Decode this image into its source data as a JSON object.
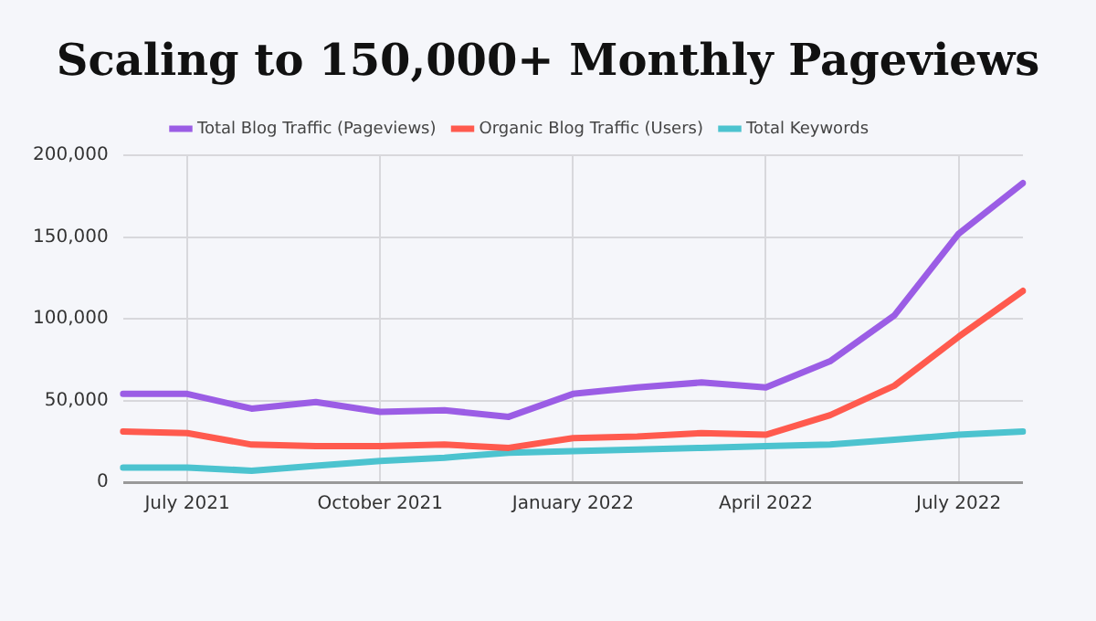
{
  "chart_data": {
    "type": "line",
    "title": "Scaling to 150,000+ Monthly Pageviews",
    "categories": [
      null,
      "July 2021",
      null,
      null,
      "October 2021",
      null,
      null,
      "January 2022",
      null,
      null,
      "April 2022",
      null,
      null,
      "July 2022",
      null
    ],
    "series": [
      {
        "name": "Total Blog Traffic (Pageviews)",
        "color": "#9b5de5",
        "values": [
          54000,
          54000,
          45000,
          49000,
          43000,
          44000,
          40000,
          54000,
          58000,
          61000,
          58000,
          74000,
          102000,
          152000,
          183000
        ]
      },
      {
        "name": "Organic Blog Traffic (Users)",
        "color": "#ff5a4e",
        "values": [
          31000,
          30000,
          23000,
          22000,
          22000,
          23000,
          21000,
          27000,
          28000,
          30000,
          29000,
          41000,
          59000,
          89000,
          117000
        ]
      },
      {
        "name": "Total Keywords",
        "color": "#4cc3cf",
        "values": [
          9000,
          9000,
          7000,
          10000,
          13000,
          15000,
          18000,
          19000,
          20000,
          21000,
          22000,
          23000,
          26000,
          29000,
          31000
        ]
      }
    ],
    "ylim": [
      0,
      200000
    ],
    "yticks": [
      0,
      {
        "value": 50000,
        "label": "50,000"
      },
      {
        "value": 100000,
        "label": "100,000"
      },
      {
        "value": 150000,
        "label": "150,000"
      },
      {
        "value": 200000,
        "label": "200,000"
      }
    ],
    "grid": true,
    "legend": "top",
    "marker": "none",
    "line_style": "solid"
  }
}
